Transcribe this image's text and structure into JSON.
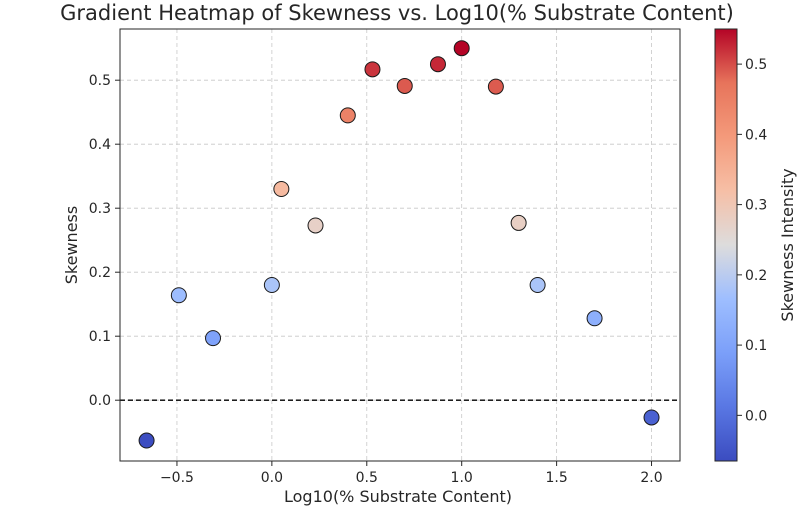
{
  "chart_data": {
    "type": "scatter",
    "title": "Gradient Heatmap of Skewness vs. Log10(% Substrate Content)",
    "xlabel": "Log10(% Substrate Content)",
    "ylabel": "Skewness",
    "xlim": [
      -0.8,
      2.15
    ],
    "ylim": [
      -0.095,
      0.58
    ],
    "xticks": [
      -0.5,
      0.0,
      0.5,
      1.0,
      1.5,
      2.0
    ],
    "xtick_labels": [
      "−0.5",
      "0.0",
      "0.5",
      "1.0",
      "1.5",
      "2.0"
    ],
    "yticks": [
      0.0,
      0.1,
      0.2,
      0.3,
      0.4,
      0.5
    ],
    "ytick_labels": [
      "0.0",
      "0.1",
      "0.2",
      "0.3",
      "0.4",
      "0.5"
    ],
    "grid": true,
    "reference_line": {
      "y": 0.0,
      "style": "dashed",
      "color": "#000000"
    },
    "colormap": "coolwarm",
    "colorbar": {
      "label": "Skewness Intensity",
      "range": [
        -0.065,
        0.55
      ],
      "ticks": [
        0.0,
        0.1,
        0.2,
        0.3,
        0.4,
        0.5
      ],
      "tick_labels": [
        "0.0",
        "0.1",
        "0.2",
        "0.3",
        "0.4",
        "0.5"
      ]
    },
    "points": [
      {
        "x": -0.66,
        "y": -0.063
      },
      {
        "x": -0.49,
        "y": 0.164
      },
      {
        "x": -0.31,
        "y": 0.097
      },
      {
        "x": 0.0,
        "y": 0.18
      },
      {
        "x": 0.05,
        "y": 0.33
      },
      {
        "x": 0.23,
        "y": 0.273
      },
      {
        "x": 0.4,
        "y": 0.445
      },
      {
        "x": 0.53,
        "y": 0.517
      },
      {
        "x": 0.7,
        "y": 0.491
      },
      {
        "x": 0.875,
        "y": 0.525
      },
      {
        "x": 1.0,
        "y": 0.55
      },
      {
        "x": 1.18,
        "y": 0.49
      },
      {
        "x": 1.3,
        "y": 0.277
      },
      {
        "x": 1.4,
        "y": 0.18
      },
      {
        "x": 1.7,
        "y": 0.128
      },
      {
        "x": 2.0,
        "y": -0.027
      }
    ]
  }
}
